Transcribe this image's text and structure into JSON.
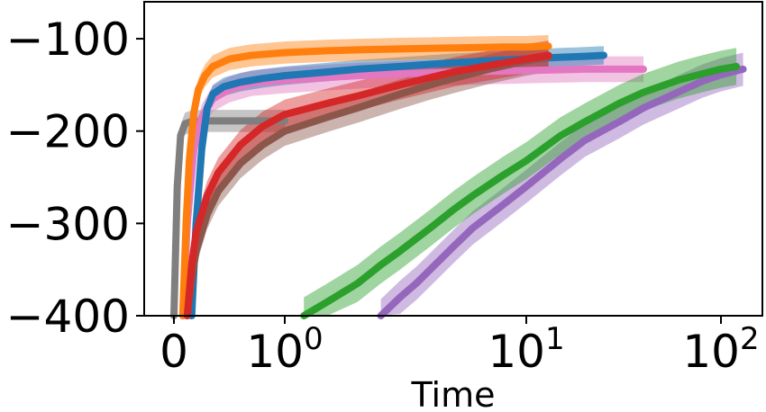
{
  "chart_data": {
    "type": "line",
    "title": "",
    "xlabel": "Time",
    "ylabel": "",
    "xscale": "symlog",
    "xlim": [
      -0.2,
      140
    ],
    "ylim": [
      -400,
      -60
    ],
    "grid": false,
    "legend": "none",
    "y_ticks": [
      {
        "value": -100,
        "label": "−100"
      },
      {
        "value": -200,
        "label": "−200"
      },
      {
        "value": -300,
        "label": "−300"
      },
      {
        "value": -400,
        "label": "−400"
      }
    ],
    "x_ticks": [
      {
        "value": 0,
        "label": "0",
        "exp": ""
      },
      {
        "value": 1,
        "label": "10",
        "exp": "0"
      },
      {
        "value": 10,
        "label": "10",
        "exp": "1"
      },
      {
        "value": 100,
        "label": "10",
        "exp": "2"
      }
    ],
    "series": [
      {
        "color": "#7f7f7f",
        "x": [
          0,
          0.03,
          0.06,
          0.1,
          0.15,
          0.25,
          0.4,
          0.6,
          0.8,
          1.0
        ],
        "y": [
          -400,
          -260,
          -205,
          -192,
          -190,
          -189,
          -189,
          -189,
          -189,
          -189
        ],
        "band": 12
      },
      {
        "color": "#e377c2",
        "x": [
          0.08,
          0.12,
          0.18,
          0.25,
          0.35,
          0.5,
          0.7,
          1.0,
          1.5,
          2,
          3,
          5,
          8,
          12,
          20,
          30,
          40
        ],
        "y": [
          -400,
          -300,
          -220,
          -185,
          -165,
          -155,
          -148,
          -145,
          -142,
          -140,
          -138,
          -136,
          -135,
          -134,
          -133,
          -133,
          -133
        ],
        "band": 14
      },
      {
        "color": "#1f77b4",
        "x": [
          0.16,
          0.2,
          0.25,
          0.3,
          0.35,
          0.45,
          0.6,
          0.8,
          1.0,
          1.5,
          2,
          3,
          5,
          8,
          12,
          15,
          20,
          25
        ],
        "y": [
          -400,
          -300,
          -220,
          -175,
          -160,
          -152,
          -147,
          -143,
          -140,
          -136,
          -133,
          -130,
          -126,
          -123,
          -121,
          -120,
          -119,
          -118
        ],
        "band": 10
      },
      {
        "color": "#ff7f0e",
        "x": [
          0.08,
          0.11,
          0.14,
          0.18,
          0.22,
          0.28,
          0.35,
          0.5,
          0.7,
          1.0,
          1.5,
          2,
          3,
          5,
          8,
          10,
          13
        ],
        "y": [
          -400,
          -300,
          -230,
          -180,
          -155,
          -140,
          -130,
          -122,
          -118,
          -115,
          -113,
          -112,
          -111,
          -110,
          -109,
          -109,
          -108
        ],
        "band": 12
      },
      {
        "color": "#8c564b",
        "x": [
          0.12,
          0.16,
          0.2,
          0.3,
          0.4,
          0.6,
          0.8,
          1.0,
          1.5,
          2,
          3,
          4,
          5,
          7,
          10,
          13
        ],
        "y": [
          -400,
          -360,
          -330,
          -290,
          -265,
          -235,
          -215,
          -200,
          -185,
          -175,
          -160,
          -150,
          -143,
          -133,
          -124,
          -120
        ],
        "band": 16
      },
      {
        "color": "#d62728",
        "x": [
          0.12,
          0.16,
          0.2,
          0.3,
          0.4,
          0.6,
          0.8,
          1.0,
          1.5,
          2,
          3,
          4,
          5,
          7,
          10,
          13
        ],
        "y": [
          -400,
          -345,
          -310,
          -270,
          -245,
          -215,
          -195,
          -182,
          -170,
          -162,
          -150,
          -142,
          -136,
          -129,
          -122,
          -118
        ],
        "band": 16
      },
      {
        "color": "#9467bd",
        "x": [
          2.5,
          3,
          3.5,
          4,
          5,
          6,
          8,
          10,
          15,
          20,
          30,
          40,
          60,
          80,
          100,
          130
        ],
        "y": [
          -400,
          -380,
          -365,
          -350,
          -325,
          -305,
          -280,
          -260,
          -230,
          -210,
          -190,
          -175,
          -158,
          -146,
          -139,
          -133
        ],
        "band": 18
      },
      {
        "color": "#2ca02c",
        "x": [
          1.2,
          1.5,
          2,
          2.5,
          3,
          4,
          5,
          6,
          8,
          10,
          15,
          20,
          30,
          40,
          60,
          80,
          100,
          120
        ],
        "y": [
          -400,
          -385,
          -365,
          -345,
          -330,
          -305,
          -285,
          -270,
          -248,
          -232,
          -205,
          -190,
          -170,
          -158,
          -145,
          -138,
          -133,
          -130
        ],
        "band": 20
      }
    ]
  }
}
